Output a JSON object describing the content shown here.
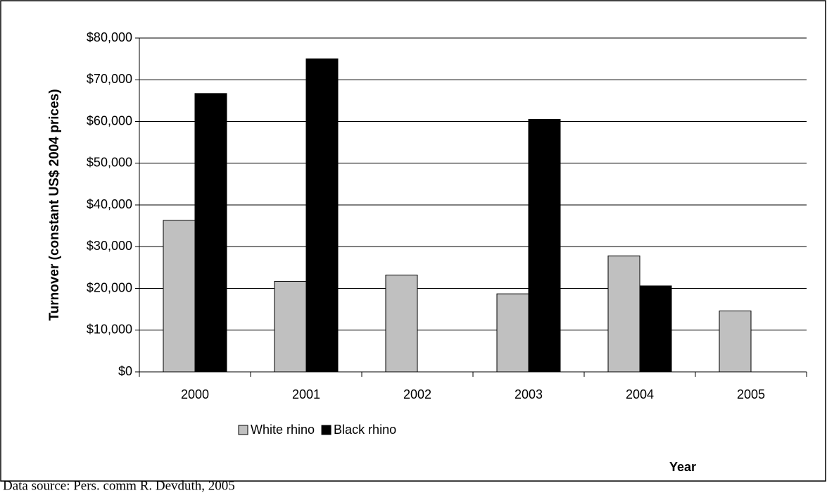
{
  "chart_data": {
    "type": "bar",
    "y_label": "Turnover (constant US$ 2004 prices)",
    "x_label": "Year",
    "source": "Data source: Pers. comm R. Devduth, 2005",
    "categories": [
      "2000",
      "2001",
      "2002",
      "2003",
      "2004",
      "2005"
    ],
    "series": [
      {
        "name": "White rhino",
        "color": "#c0c0c0",
        "values": [
          36300,
          21700,
          23200,
          18700,
          27800,
          14600
        ]
      },
      {
        "name": "Black rhino",
        "color": "#000000",
        "values": [
          66700,
          75000,
          null,
          60500,
          20600,
          null
        ]
      }
    ],
    "ylim": [
      0,
      80000
    ],
    "yticks": [
      {
        "value": 0,
        "label": "$0"
      },
      {
        "value": 10000,
        "label": "$10,000"
      },
      {
        "value": 20000,
        "label": "$20,000"
      },
      {
        "value": 30000,
        "label": "$30,000"
      },
      {
        "value": 40000,
        "label": "$40,000"
      },
      {
        "value": 50000,
        "label": "$50,000"
      },
      {
        "value": 60000,
        "label": "$60,000"
      },
      {
        "value": 70000,
        "label": "$70,000"
      },
      {
        "value": 80000,
        "label": "$80,000"
      }
    ],
    "grid": true
  }
}
